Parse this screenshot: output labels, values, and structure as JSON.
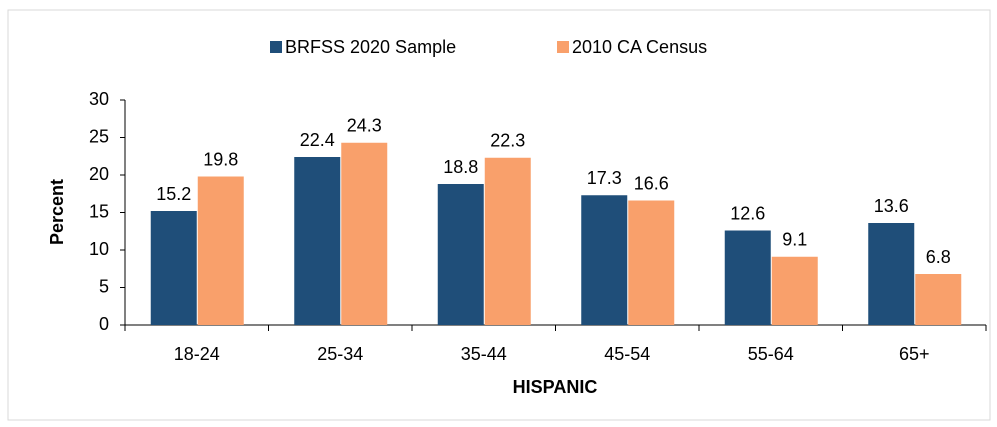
{
  "chart_data": {
    "type": "bar",
    "x_label": "HISPANIC",
    "y_label": "Percent",
    "categories": [
      "18-24",
      "25-34",
      "35-44",
      "45-54",
      "55-64",
      "65+"
    ],
    "series": [
      {
        "name": "BRFSS 2020 Sample",
        "color": "#1f4e79",
        "values": [
          15.2,
          22.4,
          18.8,
          17.3,
          12.6,
          13.6
        ]
      },
      {
        "name": "2010 CA Census",
        "color": "#f9a06b",
        "values": [
          19.8,
          24.3,
          22.3,
          16.6,
          9.1,
          6.8
        ]
      }
    ],
    "ylim": [
      0,
      30
    ],
    "yticks": [
      0,
      5,
      10,
      15,
      20,
      25,
      30
    ],
    "grid": false,
    "legend": "top"
  }
}
